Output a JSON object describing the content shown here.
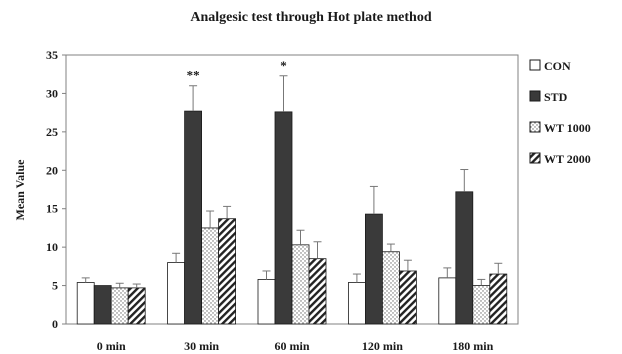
{
  "chart_data": {
    "type": "bar",
    "title": "Analgesic test through  Hot plate method",
    "ylabel": "Mean Value",
    "xlabel": "",
    "categories": [
      "0 min",
      "30 min",
      "60 min",
      "120 min",
      "180 min"
    ],
    "ylim": [
      0,
      35
    ],
    "yticks": [
      0,
      5,
      10,
      15,
      20,
      25,
      30,
      35
    ],
    "grid": false,
    "legend_position": "right",
    "series": [
      {
        "name": "CON",
        "pattern": "white",
        "values": [
          5.4,
          8.0,
          5.8,
          5.4,
          6.0
        ],
        "errors": [
          0.6,
          1.2,
          1.1,
          1.1,
          1.3
        ]
      },
      {
        "name": "STD",
        "pattern": "dark",
        "values": [
          5.0,
          27.7,
          27.6,
          14.3,
          17.2
        ],
        "errors": [
          0.0,
          3.3,
          4.7,
          3.6,
          2.9
        ]
      },
      {
        "name": "WT 1000",
        "pattern": "dotted",
        "values": [
          4.7,
          12.5,
          10.3,
          9.4,
          5.0
        ],
        "errors": [
          0.6,
          2.2,
          1.9,
          1.0,
          0.8
        ]
      },
      {
        "name": "WT 2000",
        "pattern": "diagonal",
        "values": [
          4.7,
          13.7,
          8.5,
          6.9,
          6.5
        ],
        "errors": [
          0.5,
          1.6,
          2.2,
          1.4,
          1.4
        ]
      }
    ],
    "annotations": [
      {
        "category": "30 min",
        "series": "STD",
        "text": "**"
      },
      {
        "category": "60 min",
        "series": "STD",
        "text": "*"
      }
    ],
    "colors": {
      "dark": "#3a3a3a",
      "outline": "#1a1a1a",
      "axis": "#808080"
    }
  }
}
